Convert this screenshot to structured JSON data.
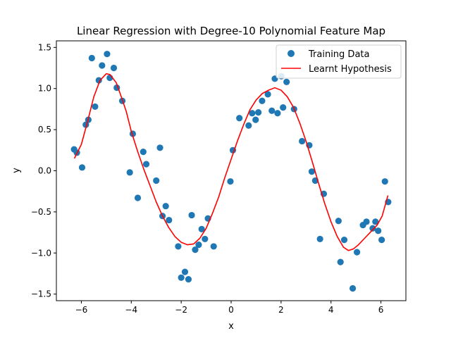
{
  "chart_data": {
    "type": "scatter",
    "title": "Linear Regression with Degree-10 Polynomial Feature Map",
    "xlabel": "x",
    "ylabel": "y",
    "xlim": [
      -7.0,
      7.0
    ],
    "ylim": [
      -1.58,
      1.58
    ],
    "xticks": [
      -6,
      -4,
      -2,
      0,
      2,
      4,
      6
    ],
    "yticks": [
      -1.5,
      -1.0,
      -0.5,
      0.0,
      0.5,
      1.0,
      1.5
    ],
    "xtick_labels": [
      "−6",
      "−4",
      "−2",
      "0",
      "2",
      "4",
      "6"
    ],
    "ytick_labels": [
      "−1.5",
      "−1.0",
      "−0.5",
      "0.0",
      "0.5",
      "1.0",
      "1.5"
    ],
    "grid": false,
    "legend_position": "top-right",
    "series": [
      {
        "name": "Training Data",
        "kind": "scatter",
        "color": "#1f77b4",
        "points": [
          [
            -6.29,
            0.26
          ],
          [
            -6.18,
            0.22
          ],
          [
            -5.97,
            0.04
          ],
          [
            -5.82,
            0.56
          ],
          [
            -5.72,
            0.62
          ],
          [
            -5.58,
            1.37
          ],
          [
            -5.45,
            0.78
          ],
          [
            -5.3,
            1.1
          ],
          [
            -5.17,
            1.28
          ],
          [
            -4.97,
            1.42
          ],
          [
            -4.86,
            1.13
          ],
          [
            -4.7,
            1.25
          ],
          [
            -4.58,
            1.01
          ],
          [
            -4.36,
            0.85
          ],
          [
            -4.06,
            -0.02
          ],
          [
            -3.94,
            0.45
          ],
          [
            -3.74,
            -0.33
          ],
          [
            -3.52,
            0.23
          ],
          [
            -3.4,
            0.08
          ],
          [
            -3.0,
            -0.12
          ],
          [
            -2.85,
            0.28
          ],
          [
            -2.75,
            -0.55
          ],
          [
            -2.62,
            -0.43
          ],
          [
            -2.49,
            -0.6
          ],
          [
            -2.12,
            -0.92
          ],
          [
            -2.0,
            -1.3
          ],
          [
            -1.85,
            -1.23
          ],
          [
            -1.71,
            -1.32
          ],
          [
            -1.58,
            -0.54
          ],
          [
            -1.44,
            -0.96
          ],
          [
            -1.3,
            -0.9
          ],
          [
            -1.18,
            -0.71
          ],
          [
            -1.05,
            -0.83
          ],
          [
            -0.93,
            -0.58
          ],
          [
            -0.7,
            -0.92
          ],
          [
            -0.03,
            -0.13
          ],
          [
            0.07,
            0.25
          ],
          [
            0.33,
            0.64
          ],
          [
            0.7,
            0.55
          ],
          [
            0.84,
            0.7
          ],
          [
            0.98,
            0.62
          ],
          [
            1.09,
            0.71
          ],
          [
            1.24,
            0.85
          ],
          [
            1.47,
            0.93
          ],
          [
            1.63,
            0.73
          ],
          [
            1.75,
            1.12
          ],
          [
            1.86,
            0.7
          ],
          [
            2.01,
            1.15
          ],
          [
            2.08,
            0.77
          ],
          [
            2.22,
            1.08
          ],
          [
            2.52,
            0.75
          ],
          [
            2.84,
            0.36
          ],
          [
            3.13,
            0.31
          ],
          [
            3.23,
            -0.01
          ],
          [
            3.37,
            -0.12
          ],
          [
            3.56,
            -0.83
          ],
          [
            3.71,
            -0.28
          ],
          [
            4.3,
            -0.61
          ],
          [
            4.38,
            -1.11
          ],
          [
            4.53,
            -0.84
          ],
          [
            4.87,
            -1.43
          ],
          [
            5.04,
            -0.99
          ],
          [
            5.28,
            -0.66
          ],
          [
            5.42,
            -0.62
          ],
          [
            5.67,
            -0.7
          ],
          [
            5.78,
            -0.62
          ],
          [
            5.89,
            -0.73
          ],
          [
            6.03,
            -0.84
          ],
          [
            6.16,
            -0.13
          ],
          [
            6.29,
            -0.38
          ]
        ]
      },
      {
        "name": "Learnt Hypothesis",
        "kind": "line",
        "color": "#ff0000",
        "points": [
          [
            -6.28,
            0.15
          ],
          [
            -6.0,
            0.32
          ],
          [
            -5.75,
            0.6
          ],
          [
            -5.5,
            0.9
          ],
          [
            -5.25,
            1.1
          ],
          [
            -5.0,
            1.18
          ],
          [
            -4.85,
            1.17
          ],
          [
            -4.6,
            1.07
          ],
          [
            -4.4,
            0.9
          ],
          [
            -4.2,
            0.72
          ],
          [
            -4.0,
            0.48
          ],
          [
            -3.75,
            0.24
          ],
          [
            -3.5,
            0.02
          ],
          [
            -3.25,
            -0.18
          ],
          [
            -3.0,
            -0.38
          ],
          [
            -2.75,
            -0.55
          ],
          [
            -2.5,
            -0.69
          ],
          [
            -2.25,
            -0.8
          ],
          [
            -2.0,
            -0.87
          ],
          [
            -1.75,
            -0.9
          ],
          [
            -1.5,
            -0.89
          ],
          [
            -1.25,
            -0.82
          ],
          [
            -1.0,
            -0.7
          ],
          [
            -0.75,
            -0.52
          ],
          [
            -0.5,
            -0.32
          ],
          [
            -0.25,
            -0.08
          ],
          [
            0.0,
            0.14
          ],
          [
            0.25,
            0.36
          ],
          [
            0.5,
            0.56
          ],
          [
            0.75,
            0.74
          ],
          [
            1.0,
            0.86
          ],
          [
            1.25,
            0.94
          ],
          [
            1.5,
            0.98
          ],
          [
            1.75,
            1.01
          ],
          [
            2.0,
            0.98
          ],
          [
            2.25,
            0.9
          ],
          [
            2.5,
            0.77
          ],
          [
            2.75,
            0.58
          ],
          [
            3.0,
            0.36
          ],
          [
            3.25,
            0.11
          ],
          [
            3.5,
            -0.15
          ],
          [
            3.75,
            -0.4
          ],
          [
            4.0,
            -0.62
          ],
          [
            4.25,
            -0.8
          ],
          [
            4.5,
            -0.93
          ],
          [
            4.7,
            -0.97
          ],
          [
            4.9,
            -0.95
          ],
          [
            5.1,
            -0.9
          ],
          [
            5.35,
            -0.82
          ],
          [
            5.6,
            -0.74
          ],
          [
            5.85,
            -0.66
          ],
          [
            6.05,
            -0.55
          ],
          [
            6.28,
            -0.3
          ]
        ]
      }
    ]
  }
}
